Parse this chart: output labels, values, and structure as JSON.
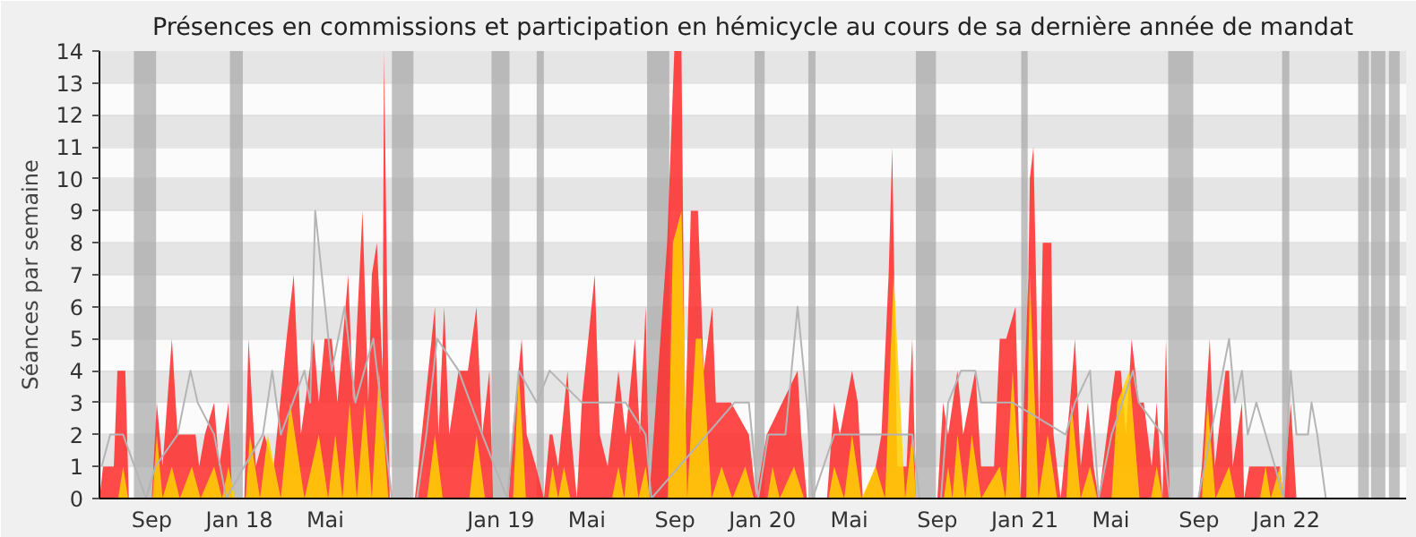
{
  "chart_data": {
    "type": "area",
    "title": "Présences en commissions et participation en hémicycle au cours de sa dernière année de mandat",
    "ylabel": "Séances par semaine",
    "xlim": [
      "2017-06-20",
      "2022-06-17"
    ],
    "ylim": [
      0,
      14
    ],
    "yticks": [
      0,
      1,
      2,
      3,
      4,
      5,
      6,
      7,
      8,
      9,
      10,
      11,
      12,
      13,
      14
    ],
    "xticks": [
      {
        "value": "2017-09-01",
        "label": "Sep"
      },
      {
        "value": "2018-01-01",
        "label": "Jan 18"
      },
      {
        "value": "2018-05-01",
        "label": "Mai"
      },
      {
        "value": "2019-01-01",
        "label": "Jan 19"
      },
      {
        "value": "2019-05-01",
        "label": "Mai"
      },
      {
        "value": "2019-09-01",
        "label": "Sep"
      },
      {
        "value": "2020-01-01",
        "label": "Jan 20"
      },
      {
        "value": "2020-05-01",
        "label": "Mai"
      },
      {
        "value": "2020-09-01",
        "label": "Sep"
      },
      {
        "value": "2021-01-01",
        "label": "Jan 21"
      },
      {
        "value": "2021-05-01",
        "label": "Mai"
      },
      {
        "value": "2021-09-01",
        "label": "Sep"
      },
      {
        "value": "2022-01-01",
        "label": "Jan 22"
      }
    ],
    "grid": "y",
    "series": [
      {
        "color": "#ff2a2a",
        "x": [
          "2017-06-20",
          "2017-06-25",
          "2017-07-10",
          "2017-07-15",
          "2017-07-26",
          "2017-07-31",
          "2017-09-01",
          "2017-09-08",
          "2017-09-16",
          "2017-09-29",
          "2017-10-07",
          "2017-11-01",
          "2017-11-06",
          "2017-11-14",
          "2017-11-27",
          "2017-12-04",
          "2017-12-17",
          "2017-12-22",
          "2018-01-08",
          "2018-01-14",
          "2018-01-24",
          "2018-02-05",
          "2018-02-18",
          "2018-03-08",
          "2018-03-18",
          "2018-03-28",
          "2018-04-15",
          "2018-04-22",
          "2018-04-30",
          "2018-05-10",
          "2018-05-18",
          "2018-06-02",
          "2018-06-09",
          "2018-06-22",
          "2018-06-30",
          "2018-07-05",
          "2018-07-12",
          "2018-07-20",
          "2018-07-22",
          "2018-07-30",
          "2018-09-03",
          "2018-09-08",
          "2018-10-01",
          "2018-10-06",
          "2018-10-14",
          "2018-10-21",
          "2018-11-03",
          "2018-11-16",
          "2018-11-28",
          "2018-12-06",
          "2018-12-16",
          "2018-12-21",
          "2019-01-12",
          "2019-01-17",
          "2019-01-30",
          "2019-02-06",
          "2019-02-19",
          "2019-03-02",
          "2019-03-10",
          "2019-03-14",
          "2019-03-22",
          "2019-04-04",
          "2019-04-09",
          "2019-04-17",
          "2019-04-24",
          "2019-05-12",
          "2019-05-19",
          "2019-05-30",
          "2019-06-14",
          "2019-06-24",
          "2019-07-07",
          "2019-07-14",
          "2019-07-22",
          "2019-07-27",
          "2019-08-21",
          "2019-08-31",
          "2019-09-10",
          "2019-09-15",
          "2019-09-23",
          "2019-10-03",
          "2019-10-11",
          "2019-10-23",
          "2019-10-28",
          "2019-11-18",
          "2019-12-13",
          "2019-12-23",
          "2020-01-07",
          "2020-02-19",
          "2020-02-24",
          "2020-03-03",
          "2020-03-31",
          "2020-04-10",
          "2020-04-18",
          "2020-05-05",
          "2020-05-13",
          "2020-05-20",
          "2020-06-07",
          "2020-06-15",
          "2020-06-25",
          "2020-06-30",
          "2020-07-07",
          "2020-07-20",
          "2020-07-28",
          "2020-08-02",
          "2020-09-01",
          "2020-09-09",
          "2020-09-16",
          "2020-09-29",
          "2020-10-07",
          "2020-10-24",
          "2020-11-01",
          "2020-11-19",
          "2020-11-27",
          "2020-12-06",
          "2020-12-19",
          "2020-12-26",
          "2021-01-06",
          "2021-01-08",
          "2021-01-13",
          "2021-01-21",
          "2021-01-26",
          "2021-02-07",
          "2021-02-10",
          "2021-02-20",
          "2021-03-05",
          "2021-03-12",
          "2021-03-20",
          "2021-03-30",
          "2021-04-07",
          "2021-04-14",
          "2021-05-07",
          "2021-05-15",
          "2021-05-22",
          "2021-05-30",
          "2021-06-09",
          "2021-06-16",
          "2021-06-27",
          "2021-07-04",
          "2021-07-12",
          "2021-07-17",
          "2021-07-22",
          "2021-08-31",
          "2021-09-05",
          "2021-09-16",
          "2021-09-23",
          "2021-10-08",
          "2021-10-13",
          "2021-10-18",
          "2021-10-31",
          "2021-11-03",
          "2021-11-10",
          "2021-12-03",
          "2021-12-23",
          "2021-12-28",
          "2022-01-07",
          "2022-01-15",
          "2022-06-17"
        ],
        "values": [
          0,
          1,
          1,
          4,
          4,
          0,
          0,
          3,
          1,
          5,
          2,
          2,
          1,
          2,
          3,
          1,
          3,
          0,
          0,
          5,
          1,
          2,
          1,
          5,
          7,
          2,
          5,
          3,
          5,
          5,
          3,
          7,
          3,
          9,
          3,
          7,
          8,
          4,
          14,
          0,
          0,
          1,
          6,
          2,
          6,
          2,
          4,
          4,
          6,
          2,
          4,
          0,
          0,
          2,
          5,
          2,
          1,
          0,
          2,
          2,
          1,
          4,
          2,
          0,
          3,
          7,
          2,
          1,
          4,
          2,
          5,
          2,
          6,
          0,
          8,
          14,
          14,
          2,
          9,
          9,
          4,
          6,
          3,
          3,
          2,
          0,
          2,
          4,
          2,
          0,
          0,
          3,
          2,
          4,
          3,
          0,
          1,
          2,
          7,
          11,
          1,
          1,
          5,
          0,
          0,
          3,
          2,
          4,
          2,
          4,
          1,
          1,
          5,
          5,
          6,
          0,
          7,
          10,
          11,
          2,
          8,
          8,
          2,
          0,
          3,
          5,
          1,
          3,
          1,
          0,
          4,
          4,
          2,
          5,
          3,
          3,
          1,
          3,
          0,
          5,
          0,
          0,
          1,
          5,
          1,
          4,
          4,
          1,
          3,
          0,
          1,
          1,
          1,
          0,
          3,
          0,
          0
        ]
      },
      {
        "color": "#ffd200",
        "x": [
          "2017-06-20",
          "2017-07-16",
          "2017-07-23",
          "2017-07-30",
          "2017-09-02",
          "2017-09-08",
          "2017-09-16",
          "2017-09-29",
          "2017-10-10",
          "2017-10-27",
          "2017-11-08",
          "2017-11-27",
          "2017-12-08",
          "2017-12-17",
          "2017-12-26",
          "2018-01-10",
          "2018-01-16",
          "2018-01-30",
          "2018-02-10",
          "2018-02-28",
          "2018-03-13",
          "2018-04-02",
          "2018-04-22",
          "2018-05-05",
          "2018-05-15",
          "2018-05-25",
          "2018-06-04",
          "2018-06-14",
          "2018-06-25",
          "2018-07-05",
          "2018-07-15",
          "2018-07-28",
          "2018-09-20",
          "2018-10-01",
          "2018-10-12",
          "2018-11-18",
          "2018-11-28",
          "2018-12-10",
          "2019-01-18",
          "2019-01-26",
          "2019-02-05",
          "2019-03-08",
          "2019-03-14",
          "2019-03-22",
          "2019-03-30",
          "2019-04-08",
          "2019-06-05",
          "2019-06-14",
          "2019-06-22",
          "2019-07-01",
          "2019-07-12",
          "2019-07-22",
          "2019-07-28",
          "2019-08-22",
          "2019-08-29",
          "2019-09-10",
          "2019-09-18",
          "2019-09-30",
          "2019-10-08",
          "2019-10-22",
          "2019-11-05",
          "2019-11-20",
          "2019-12-08",
          "2019-12-20",
          "2020-01-08",
          "2020-01-15",
          "2020-01-25",
          "2020-02-14",
          "2020-02-28",
          "2020-04-02",
          "2020-04-10",
          "2020-04-24",
          "2020-05-05",
          "2020-05-18",
          "2020-06-07",
          "2020-06-20",
          "2020-07-02",
          "2020-07-18",
          "2020-07-28",
          "2020-08-02",
          "2020-09-10",
          "2020-09-16",
          "2020-09-22",
          "2020-09-29",
          "2020-10-10",
          "2020-10-19",
          "2020-11-01",
          "2020-11-27",
          "2020-12-05",
          "2020-12-15",
          "2020-12-26",
          "2021-01-03",
          "2021-01-08",
          "2021-01-20",
          "2021-02-02",
          "2021-02-15",
          "2021-02-28",
          "2021-03-07",
          "2021-03-20",
          "2021-04-02",
          "2021-04-12",
          "2021-05-02",
          "2021-05-10",
          "2021-05-27",
          "2021-06-10",
          "2021-06-26",
          "2021-07-04",
          "2021-07-12",
          "2021-09-05",
          "2021-09-13",
          "2021-09-24",
          "2021-10-13",
          "2021-10-22",
          "2021-11-25",
          "2021-12-03",
          "2021-12-10",
          "2021-12-23",
          "2021-12-28",
          "2022-06-17"
        ],
        "values": [
          0,
          0,
          1,
          0,
          0,
          2,
          0,
          1,
          0,
          1,
          0,
          1,
          0,
          1,
          0,
          0,
          2,
          0,
          2,
          0,
          3,
          0,
          2,
          0,
          2,
          0,
          3,
          0,
          3,
          0,
          4,
          0,
          0,
          2,
          0,
          0,
          2,
          0,
          0,
          4,
          0,
          0,
          1,
          0,
          1,
          0,
          0,
          1,
          0,
          2,
          0,
          1,
          0,
          0,
          8,
          9,
          0,
          5,
          5,
          0,
          1,
          0,
          1,
          0,
          0,
          1,
          0,
          1,
          0,
          0,
          1,
          0,
          2,
          0,
          1,
          0,
          7,
          0,
          2,
          0,
          0,
          1,
          0,
          2,
          0,
          2,
          0,
          1,
          0,
          4,
          0,
          0,
          7,
          0,
          2,
          0,
          0,
          3,
          0,
          1,
          0,
          0,
          3,
          4,
          0,
          0,
          1,
          0,
          0,
          3,
          0,
          1,
          0,
          0,
          1,
          0,
          1,
          0,
          0
        ]
      },
      {
        "type": "line",
        "color": "#b4b4b4",
        "x": [
          "2017-06-23",
          "2017-07-05",
          "2017-07-23",
          "2017-08-24",
          "2017-09-06",
          "2017-10-07",
          "2017-10-25",
          "2017-11-04",
          "2017-11-27",
          "2017-12-14",
          "2018-01-08",
          "2018-02-03",
          "2018-02-16",
          "2018-02-28",
          "2018-04-02",
          "2018-04-10",
          "2018-04-17",
          "2018-05-10",
          "2018-05-28",
          "2018-06-12",
          "2018-07-07",
          "2018-08-02",
          "2018-09-06",
          "2018-09-19",
          "2018-10-04",
          "2018-11-03",
          "2018-12-06",
          "2019-01-10",
          "2019-01-26",
          "2019-02-20",
          "2019-03-10",
          "2019-04-24",
          "2019-06-24",
          "2019-07-22",
          "2019-07-30",
          "2019-11-23",
          "2019-12-13",
          "2019-12-26",
          "2020-01-09",
          "2020-02-02",
          "2020-02-19",
          "2020-03-03",
          "2020-03-11",
          "2020-04-10",
          "2020-06-07",
          "2020-07-28",
          "2020-08-07",
          "2020-09-06",
          "2020-09-16",
          "2020-10-04",
          "2020-10-24",
          "2020-11-01",
          "2020-11-24",
          "2020-12-15",
          "2021-02-27",
          "2021-03-12",
          "2021-04-02",
          "2021-04-14",
          "2021-05-02",
          "2021-06-01",
          "2021-06-09",
          "2021-07-12",
          "2021-07-22",
          "2021-08-31",
          "2021-09-26",
          "2021-10-13",
          "2021-10-21",
          "2021-10-31",
          "2021-11-08",
          "2021-11-20",
          "2021-12-03",
          "2021-12-16",
          "2021-12-28",
          "2022-01-07",
          "2022-01-15",
          "2022-01-31",
          "2022-02-05",
          "2022-02-13",
          "2022-02-25",
          "2022-06-17"
        ],
        "values": [
          1,
          2,
          2,
          0,
          1,
          2,
          4,
          3,
          2,
          0,
          1,
          2,
          4,
          2,
          4,
          3,
          9,
          4,
          6,
          3,
          5,
          0,
          0,
          2,
          5,
          4,
          2,
          0,
          4,
          3,
          4,
          3,
          3,
          2,
          0,
          3,
          3,
          0,
          2,
          2,
          6,
          3,
          0,
          2,
          2,
          2,
          0,
          0,
          3,
          4,
          4,
          3,
          3,
          3,
          2,
          3,
          4,
          0,
          2,
          4,
          3,
          2,
          0,
          0,
          3,
          5,
          3,
          4,
          2,
          3,
          2,
          1,
          0,
          4,
          2,
          2,
          3,
          2,
          0,
          0
        ]
      }
    ],
    "bands": [
      {
        "axis": "x",
        "from": "2017-08-07",
        "to": "2017-09-07",
        "color": "#a6a6a6"
      },
      {
        "axis": "x",
        "from": "2017-12-19",
        "to": "2018-01-06",
        "color": "#a6a6a6"
      },
      {
        "axis": "x",
        "from": "2018-08-02",
        "to": "2018-09-01",
        "color": "#a6a6a6"
      },
      {
        "axis": "x",
        "from": "2018-12-19",
        "to": "2019-01-13",
        "color": "#a6a6a6"
      },
      {
        "axis": "x",
        "from": "2019-02-20",
        "to": "2019-03-02",
        "color": "#a6a6a6"
      },
      {
        "axis": "x",
        "from": "2019-07-24",
        "to": "2019-08-24",
        "color": "#a6a6a6"
      },
      {
        "axis": "x",
        "from": "2019-12-21",
        "to": "2020-01-04",
        "color": "#a6a6a6"
      },
      {
        "axis": "x",
        "from": "2020-03-05",
        "to": "2020-03-15",
        "color": "#a6a6a6"
      },
      {
        "axis": "x",
        "from": "2020-08-02",
        "to": "2020-08-30",
        "color": "#a6a6a6"
      },
      {
        "axis": "x",
        "from": "2020-12-27",
        "to": "2021-01-05",
        "color": "#a6a6a6"
      },
      {
        "axis": "x",
        "from": "2021-07-20",
        "to": "2021-08-24",
        "color": "#a6a6a6"
      },
      {
        "axis": "x",
        "from": "2021-12-26",
        "to": "2022-01-05",
        "color": "#a6a6a6"
      },
      {
        "axis": "x",
        "from": "2022-04-11",
        "to": "2022-04-26",
        "color": "#a6a6a6"
      },
      {
        "axis": "x",
        "from": "2022-04-29",
        "to": "2022-05-19",
        "color": "#a6a6a6"
      },
      {
        "axis": "x",
        "from": "2022-05-24",
        "to": "2022-06-08",
        "color": "#a6a6a6"
      }
    ]
  }
}
